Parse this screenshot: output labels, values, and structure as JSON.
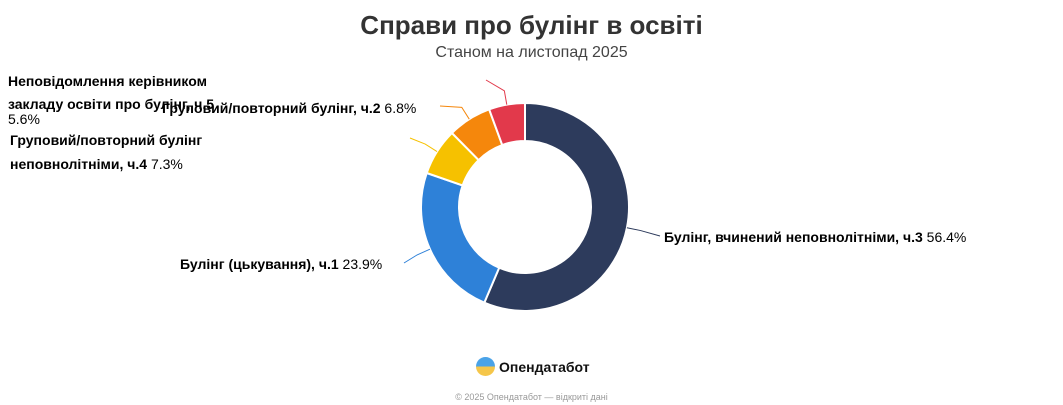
{
  "chart_data": {
    "type": "pie",
    "donut": true,
    "title": "Справи про булінг в освіті",
    "subtitle": "Станом на листопад 2025",
    "slices": [
      {
        "label": "Булінг, вчинений неповнолітніми, ч.3",
        "value": 56.4,
        "display": "56.4%",
        "color": "#2d3b5c"
      },
      {
        "label": "Булінг (цькування), ч.1",
        "value": 23.9,
        "display": "23.9%",
        "color": "#2e81d8"
      },
      {
        "label": "Груповий/повторний булінг неповнолітніми, ч.4",
        "value": 7.3,
        "display": "7.3%",
        "color": "#f6c100"
      },
      {
        "label": "Груповий/повторний булінг, ч.2",
        "value": 6.8,
        "display": "6.8%",
        "color": "#f5870c"
      },
      {
        "label": "Неповідомлення керівником закладу освіти про булінг, ч.5",
        "value": 5.6,
        "display": "5.6%",
        "color": "#e2394b"
      }
    ]
  },
  "brand": {
    "name": "Опендатабот"
  },
  "footer": "© 2025 Опендатабот — відкриті дані"
}
